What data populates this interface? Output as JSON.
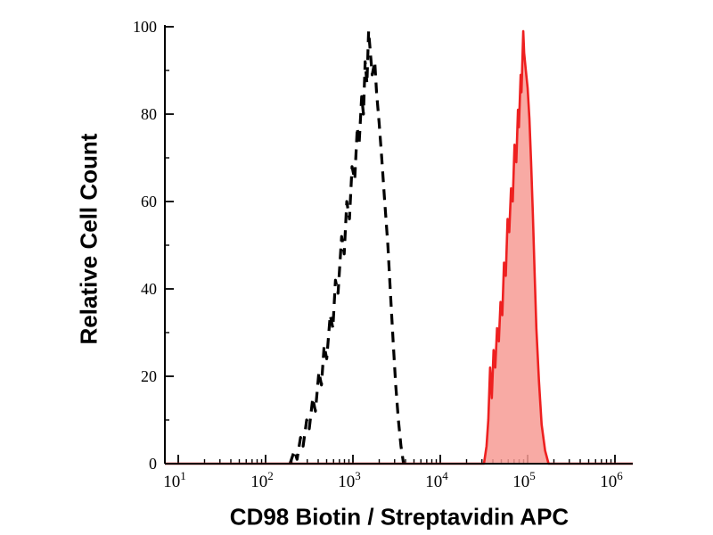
{
  "chart_data": {
    "type": "area",
    "subtype": "flow-cytometry-histogram",
    "title": "",
    "xlabel": "CD98 Biotin / Streptavidin APC",
    "ylabel": "Relative Cell Count",
    "x_scale": "log10",
    "xlim_log": [
      1,
      6
    ],
    "ylim": [
      0,
      100
    ],
    "x_tick_exponents": [
      1,
      2,
      3,
      4,
      5,
      6
    ],
    "x_tick_base": "10",
    "y_ticks": [
      0,
      20,
      40,
      60,
      80,
      100
    ],
    "y_minor_ticks": [
      10,
      30,
      50,
      70,
      90
    ],
    "grid": false,
    "legend": "none",
    "colors": {
      "background": "#ffffff",
      "axis": "#000000",
      "control_line": "#000000",
      "stained_line": "#ee2020",
      "stained_fill": "#f79b94"
    },
    "series": [
      {
        "name": "control (dashed)",
        "line_style": "dashed",
        "color": "#000000",
        "fill": "none",
        "points_logx_y": [
          [
            2.28,
            0
          ],
          [
            2.33,
            3
          ],
          [
            2.36,
            1
          ],
          [
            2.4,
            6
          ],
          [
            2.43,
            4
          ],
          [
            2.47,
            10
          ],
          [
            2.5,
            8
          ],
          [
            2.54,
            15
          ],
          [
            2.57,
            12
          ],
          [
            2.61,
            21
          ],
          [
            2.64,
            18
          ],
          [
            2.67,
            27
          ],
          [
            2.7,
            24
          ],
          [
            2.74,
            34
          ],
          [
            2.77,
            31
          ],
          [
            2.8,
            42
          ],
          [
            2.83,
            39
          ],
          [
            2.87,
            52
          ],
          [
            2.9,
            48
          ],
          [
            2.93,
            60
          ],
          [
            2.96,
            56
          ],
          [
            2.99,
            68
          ],
          [
            3.02,
            65
          ],
          [
            3.05,
            77
          ],
          [
            3.07,
            73
          ],
          [
            3.1,
            84
          ],
          [
            3.12,
            80
          ],
          [
            3.14,
            92
          ],
          [
            3.16,
            87
          ],
          [
            3.18,
            99
          ],
          [
            3.2,
            94
          ],
          [
            3.22,
            89
          ],
          [
            3.25,
            92
          ],
          [
            3.27,
            85
          ],
          [
            3.3,
            78
          ],
          [
            3.33,
            70
          ],
          [
            3.36,
            61
          ],
          [
            3.4,
            50
          ],
          [
            3.43,
            39
          ],
          [
            3.46,
            28
          ],
          [
            3.49,
            18
          ],
          [
            3.52,
            10
          ],
          [
            3.55,
            4
          ],
          [
            3.58,
            0
          ]
        ]
      },
      {
        "name": "CD98 stained (red)",
        "line_style": "solid",
        "color": "#ee2020",
        "fill": "#f79b94",
        "baseline_full_width": true,
        "points_logx_y": [
          [
            4.5,
            0
          ],
          [
            4.53,
            4
          ],
          [
            4.55,
            10
          ],
          [
            4.57,
            22
          ],
          [
            4.59,
            15
          ],
          [
            4.61,
            26
          ],
          [
            4.63,
            22
          ],
          [
            4.65,
            31
          ],
          [
            4.67,
            28
          ],
          [
            4.69,
            37
          ],
          [
            4.71,
            34
          ],
          [
            4.73,
            46
          ],
          [
            4.75,
            43
          ],
          [
            4.77,
            56
          ],
          [
            4.79,
            53
          ],
          [
            4.81,
            63
          ],
          [
            4.83,
            60
          ],
          [
            4.85,
            73
          ],
          [
            4.87,
            69
          ],
          [
            4.89,
            81
          ],
          [
            4.9,
            77
          ],
          [
            4.92,
            89
          ],
          [
            4.93,
            85
          ],
          [
            4.95,
            99
          ],
          [
            4.96,
            94
          ],
          [
            4.98,
            90
          ],
          [
            5.0,
            86
          ],
          [
            5.02,
            79
          ],
          [
            5.04,
            69
          ],
          [
            5.06,
            57
          ],
          [
            5.08,
            44
          ],
          [
            5.1,
            31
          ],
          [
            5.13,
            19
          ],
          [
            5.16,
            9
          ],
          [
            5.2,
            3
          ],
          [
            5.24,
            0
          ]
        ]
      }
    ]
  }
}
